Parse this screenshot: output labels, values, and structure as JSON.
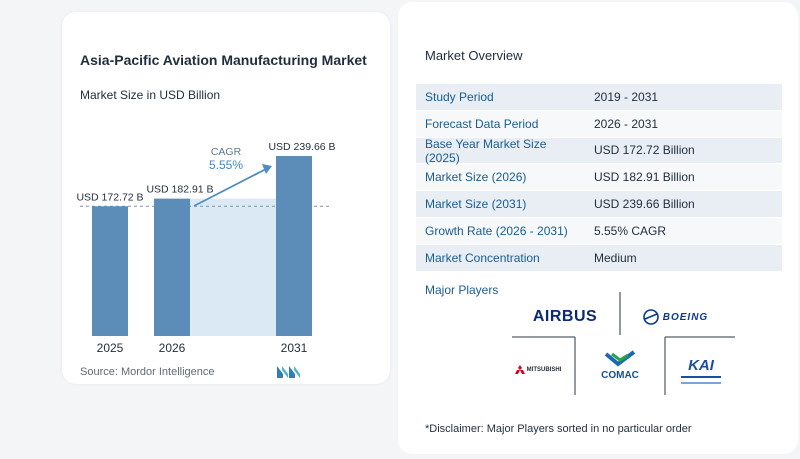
{
  "chart_data": {
    "type": "bar",
    "title": "Asia-Pacific Aviation Manufacturing Market",
    "subtitle": "Market Size in USD Billion",
    "categories": [
      "2025",
      "2026",
      "2031"
    ],
    "values": [
      172.72,
      182.91,
      239.66
    ],
    "value_labels": [
      "USD 172.72 B",
      "USD 182.91 B",
      "USD 239.66 B"
    ],
    "cagr_label": "CAGR",
    "cagr_value": "5.55%",
    "colors": {
      "bar": "#5b8db8",
      "area": "#dbe9f5",
      "arrow": "#4f8fc0",
      "dashed": "#7d93a8"
    }
  },
  "source": "Source:  Mordor Intelligence",
  "overview": {
    "title": "Market Overview",
    "rows": [
      {
        "label": "Study Period",
        "value": "2019 - 2031"
      },
      {
        "label": "Forecast Data Period",
        "value": "2026 - 2031"
      },
      {
        "label": "Base Year Market Size (2025)",
        "value": "USD 172.72 Billion"
      },
      {
        "label": "Market Size (2026)",
        "value": "USD 182.91 Billion"
      },
      {
        "label": "Market Size (2031)",
        "value": "USD 239.66 Billion"
      },
      {
        "label": "Growth Rate (2026 - 2031)",
        "value": "5.55% CAGR"
      },
      {
        "label": "Market Concentration",
        "value": "Medium"
      }
    ]
  },
  "major_players": {
    "title": "Major Players",
    "logos": [
      {
        "name": "AIRBUS",
        "icon": "airbus-logo"
      },
      {
        "name": "BOEING",
        "icon": "boeing-logo"
      },
      {
        "name": "MITSUBISHI",
        "icon": "mitsubishi-logo"
      },
      {
        "name": "COMAC",
        "icon": "comac-logo"
      },
      {
        "name": "KAI",
        "icon": "kai-logo"
      }
    ]
  },
  "disclaimer": "*Disclaimer: Major Players sorted in no particular order"
}
